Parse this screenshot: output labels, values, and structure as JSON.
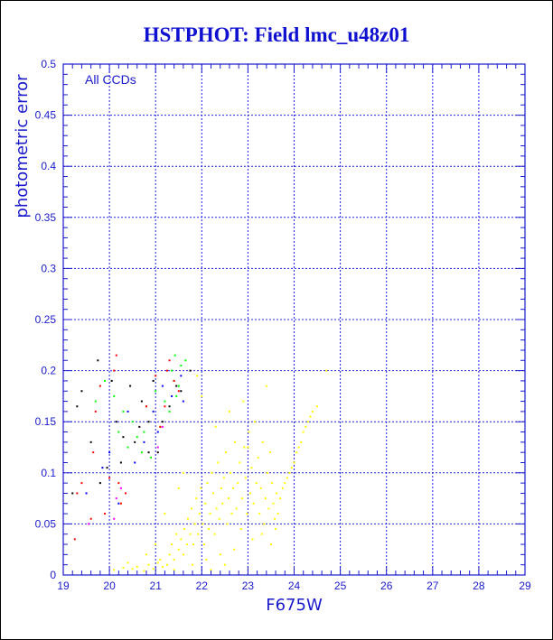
{
  "chart_data": {
    "type": "scatter",
    "title": "HSTPHOT: Field lmc_u48z01",
    "annotation": "All CCDs",
    "xlabel": "F675W",
    "ylabel": "photometric error",
    "xlim": [
      19,
      29
    ],
    "ylim": [
      0,
      0.5
    ],
    "x_ticks": [
      19,
      20,
      21,
      22,
      23,
      24,
      25,
      26,
      27,
      28,
      29
    ],
    "y_ticks": [
      0,
      0.05,
      0.1,
      0.15,
      0.2,
      0.25,
      0.3,
      0.35,
      0.4,
      0.45,
      0.5
    ],
    "grid": true,
    "colors": {
      "axis": "#1a1acc",
      "grid": "#2020dd",
      "title": "#1010d0"
    },
    "series": [
      {
        "color": "#ffff00",
        "points": [
          [
            20.1,
            0.005
          ],
          [
            20.3,
            0.007
          ],
          [
            20.5,
            0.006
          ],
          [
            20.6,
            0.008
          ],
          [
            20.75,
            0.004
          ],
          [
            20.85,
            0.01
          ],
          [
            20.95,
            0.006
          ],
          [
            21.05,
            0.012
          ],
          [
            21.15,
            0.008
          ],
          [
            21.25,
            0.01
          ],
          [
            21.3,
            0.02
          ],
          [
            21.35,
            0.03
          ],
          [
            21.4,
            0.015
          ],
          [
            21.45,
            0.04
          ],
          [
            21.5,
            0.025
          ],
          [
            21.55,
            0.035
          ],
          [
            21.6,
            0.02
          ],
          [
            21.62,
            0.045
          ],
          [
            21.68,
            0.03
          ],
          [
            21.7,
            0.055
          ],
          [
            21.75,
            0.04
          ],
          [
            21.78,
            0.065
          ],
          [
            21.82,
            0.03
          ],
          [
            21.85,
            0.05
          ],
          [
            21.88,
            0.075
          ],
          [
            21.92,
            0.04
          ],
          [
            21.95,
            0.06
          ],
          [
            21.98,
            0.085
          ],
          [
            22.02,
            0.05
          ],
          [
            22.05,
            0.03
          ],
          [
            22.08,
            0.07
          ],
          [
            22.12,
            0.09
          ],
          [
            22.15,
            0.045
          ],
          [
            22.18,
            0.06
          ],
          [
            22.22,
            0.1
          ],
          [
            22.25,
            0.08
          ],
          [
            22.28,
            0.04
          ],
          [
            22.32,
            0.065
          ],
          [
            22.35,
            0.11
          ],
          [
            22.38,
            0.055
          ],
          [
            22.42,
            0.085
          ],
          [
            22.45,
            0.07
          ],
          [
            22.48,
            0.095
          ],
          [
            22.52,
            0.12
          ],
          [
            22.55,
            0.05
          ],
          [
            22.58,
            0.075
          ],
          [
            22.62,
            0.1
          ],
          [
            22.65,
            0.06
          ],
          [
            22.68,
            0.085
          ],
          [
            22.72,
            0.13
          ],
          [
            22.75,
            0.065
          ],
          [
            22.78,
            0.09
          ],
          [
            22.82,
            0.11
          ],
          [
            22.85,
            0.045
          ],
          [
            22.88,
            0.075
          ],
          [
            22.92,
            0.125
          ],
          [
            22.95,
            0.095
          ],
          [
            22.98,
            0.06
          ],
          [
            23.02,
            0.14
          ],
          [
            23.05,
            0.08
          ],
          [
            23.08,
            0.105
          ],
          [
            23.12,
            0.07
          ],
          [
            23.15,
            0.15
          ],
          [
            23.18,
            0.09
          ],
          [
            23.22,
            0.115
          ],
          [
            23.25,
            0.06
          ],
          [
            23.28,
            0.085
          ],
          [
            23.32,
            0.13
          ],
          [
            23.35,
            0.05
          ],
          [
            23.38,
            0.075
          ],
          [
            23.42,
            0.1
          ],
          [
            23.45,
            0.065
          ],
          [
            23.48,
            0.12
          ],
          [
            23.52,
            0.09
          ],
          [
            23.55,
            0.07
          ],
          [
            23.58,
            0.055
          ],
          [
            23.62,
            0.08
          ],
          [
            23.65,
            0.06
          ],
          [
            23.7,
            0.075
          ],
          [
            23.75,
            0.085
          ],
          [
            23.8,
            0.09
          ],
          [
            23.85,
            0.095
          ],
          [
            23.9,
            0.1
          ],
          [
            23.95,
            0.105
          ],
          [
            24.0,
            0.11
          ],
          [
            24.05,
            0.12
          ],
          [
            24.1,
            0.125
          ],
          [
            24.15,
            0.13
          ],
          [
            24.2,
            0.14
          ],
          [
            24.25,
            0.145
          ],
          [
            24.3,
            0.15
          ],
          [
            24.35,
            0.155
          ],
          [
            24.4,
            0.16
          ],
          [
            24.5,
            0.165
          ],
          [
            24.7,
            0.2
          ],
          [
            23.4,
            0.185
          ],
          [
            22.3,
            0.145
          ],
          [
            22.0,
            0.175
          ],
          [
            21.9,
            0.195
          ],
          [
            22.6,
            0.16
          ],
          [
            23.0,
            0.125
          ],
          [
            22.9,
            0.17
          ],
          [
            21.6,
            0.1
          ],
          [
            21.5,
            0.085
          ],
          [
            21.2,
            0.06
          ],
          [
            20.8,
            0.02
          ],
          [
            21.0,
            0.03
          ],
          [
            21.1,
            0.015
          ],
          [
            20.4,
            0.012
          ],
          [
            21.4,
            0.005
          ],
          [
            21.8,
            0.01
          ],
          [
            22.1,
            0.015
          ],
          [
            22.4,
            0.02
          ],
          [
            22.7,
            0.025
          ],
          [
            23.1,
            0.035
          ],
          [
            23.3,
            0.04
          ],
          [
            23.6,
            0.045
          ],
          [
            23.5,
            0.03
          ],
          [
            22.2,
            0.005
          ],
          [
            22.5,
            0.01
          ]
        ]
      },
      {
        "color": "#00ff00",
        "points": [
          [
            19.7,
            0.17
          ],
          [
            19.9,
            0.19
          ],
          [
            20.1,
            0.175
          ],
          [
            20.3,
            0.16
          ],
          [
            20.5,
            0.15
          ],
          [
            20.6,
            0.135
          ],
          [
            20.7,
            0.12
          ],
          [
            20.8,
            0.165
          ],
          [
            20.9,
            0.115
          ],
          [
            21.0,
            0.18
          ],
          [
            21.1,
            0.145
          ],
          [
            21.2,
            0.17
          ],
          [
            21.3,
            0.16
          ],
          [
            21.35,
            0.2
          ],
          [
            21.4,
            0.19
          ],
          [
            21.42,
            0.215
          ],
          [
            21.45,
            0.175
          ],
          [
            21.5,
            0.185
          ],
          [
            21.55,
            0.205
          ],
          [
            21.65,
            0.21
          ],
          [
            20.2,
            0.14
          ],
          [
            20.4,
            0.125
          ],
          [
            20.75,
            0.14
          ]
        ]
      },
      {
        "color": "#ff0000",
        "points": [
          [
            19.25,
            0.035
          ],
          [
            19.3,
            0.08
          ],
          [
            19.4,
            0.09
          ],
          [
            19.6,
            0.055
          ],
          [
            19.65,
            0.12
          ],
          [
            19.7,
            0.16
          ],
          [
            19.8,
            0.185
          ],
          [
            19.9,
            0.06
          ],
          [
            20.0,
            0.095
          ],
          [
            20.1,
            0.2
          ],
          [
            20.15,
            0.215
          ],
          [
            20.2,
            0.09
          ],
          [
            20.25,
            0.07
          ],
          [
            20.35,
            0.08
          ],
          [
            20.8,
            0.165
          ],
          [
            21.0,
            0.195
          ],
          [
            21.1,
            0.145
          ],
          [
            21.2,
            0.165
          ],
          [
            21.25,
            0.2
          ],
          [
            21.3,
            0.21
          ],
          [
            21.4,
            0.19
          ],
          [
            21.5,
            0.18
          ]
        ]
      },
      {
        "color": "#000000",
        "points": [
          [
            19.2,
            0.08
          ],
          [
            19.3,
            0.165
          ],
          [
            19.4,
            0.18
          ],
          [
            19.6,
            0.13
          ],
          [
            19.75,
            0.21
          ],
          [
            19.8,
            0.09
          ],
          [
            19.95,
            0.105
          ],
          [
            20.05,
            0.19
          ],
          [
            20.15,
            0.15
          ],
          [
            20.25,
            0.11
          ],
          [
            20.3,
            0.135
          ],
          [
            20.45,
            0.185
          ],
          [
            20.55,
            0.13
          ],
          [
            20.65,
            0.145
          ],
          [
            20.7,
            0.17
          ],
          [
            20.85,
            0.12
          ],
          [
            20.95,
            0.19
          ],
          [
            21.05,
            0.12
          ],
          [
            21.15,
            0.15
          ],
          [
            21.3,
            0.165
          ],
          [
            21.45,
            0.185
          ],
          [
            21.55,
            0.18
          ],
          [
            21.75,
            0.2
          ],
          [
            20.85,
            0.15
          ]
        ]
      },
      {
        "color": "#0000ff",
        "points": [
          [
            19.5,
            0.08
          ],
          [
            19.85,
            0.105
          ],
          [
            20.0,
            0.12
          ],
          [
            20.2,
            0.07
          ],
          [
            20.4,
            0.16
          ],
          [
            20.55,
            0.11
          ],
          [
            20.75,
            0.13
          ],
          [
            20.95,
            0.16
          ],
          [
            21.05,
            0.14
          ],
          [
            21.15,
            0.185
          ],
          [
            21.35,
            0.175
          ],
          [
            21.55,
            0.195
          ],
          [
            21.6,
            0.17
          ]
        ]
      },
      {
        "color": "#ff00ff",
        "points": [
          [
            19.55,
            0.05
          ],
          [
            20.15,
            0.075
          ],
          [
            20.25,
            0.085
          ],
          [
            20.1,
            0.055
          ],
          [
            21.15,
            0.145
          ],
          [
            21.05,
            0.125
          ]
        ]
      }
    ]
  }
}
